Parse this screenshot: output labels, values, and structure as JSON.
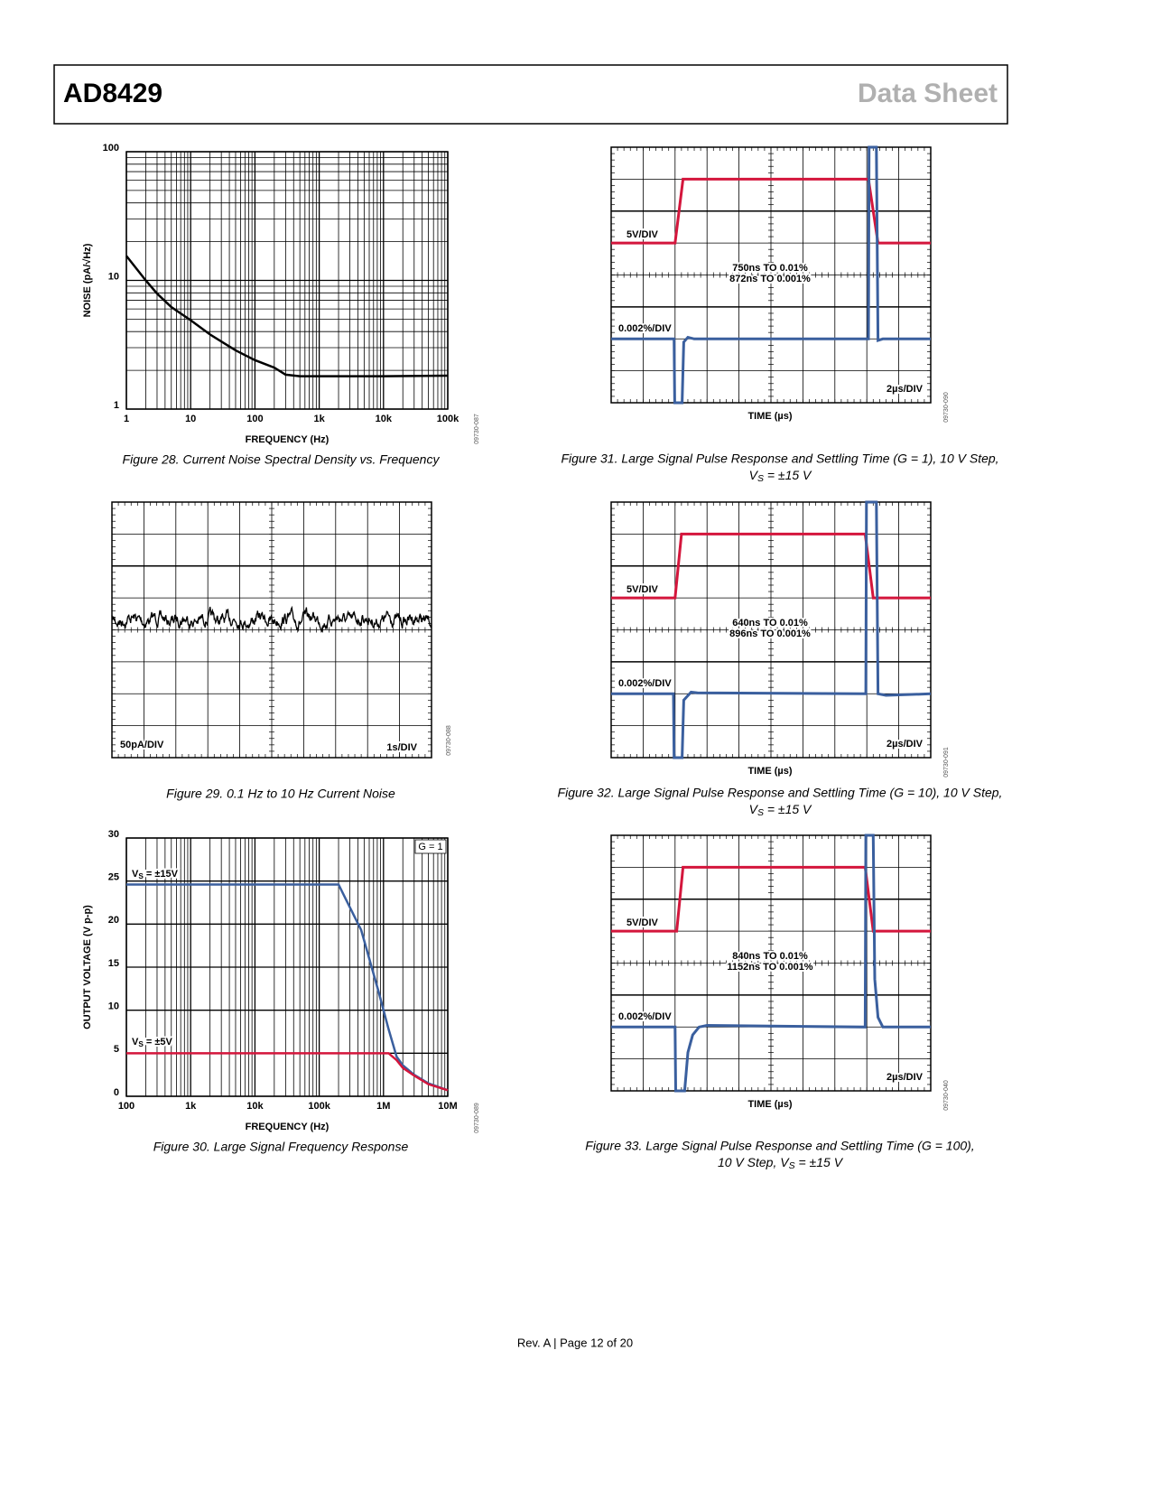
{
  "header": {
    "product": "AD8429",
    "doc_type": "Data Sheet"
  },
  "chart_data": [
    {
      "type": "line",
      "x_label": "FREQUENCY (Hz)",
      "y_label": "NOISE (pA/√Hz)",
      "xscale": "log",
      "yscale": "log",
      "grid": true,
      "xlim": [
        1,
        100000
      ],
      "ylim": [
        1,
        100
      ],
      "xticks": [
        1,
        10,
        100,
        {
          "value": 1000,
          "label": "1k"
        },
        {
          "value": 10000,
          "label": "10k"
        },
        {
          "value": 100000,
          "label": "100k"
        }
      ],
      "yticks": [
        1,
        10,
        100
      ],
      "x": [
        1,
        2,
        3,
        5,
        10,
        20,
        50,
        100,
        200,
        300,
        500,
        1000,
        10000,
        100000
      ],
      "series": [
        {
          "color": "#000000",
          "values": [
            15.5,
            10,
            7.9,
            6.2,
            4.9,
            3.8,
            2.86,
            2.4,
            2.1,
            1.85,
            1.8,
            1.8,
            1.8,
            1.82
          ]
        }
      ],
      "caption": "Figure 28. Current Noise Spectral Density vs. Frequency",
      "code": "09730-087"
    },
    {
      "type": "line",
      "x_label": "FREQUENCY (Hz)",
      "y_label": "OUTPUT VOLTAGE (V p-p)",
      "xscale": "log",
      "grid": true,
      "xlim": [
        100,
        10000000
      ],
      "ylim": [
        0,
        30
      ],
      "xticks": [
        100,
        {
          "value": 1000,
          "label": "1k"
        },
        {
          "value": 10000,
          "label": "10k"
        },
        {
          "value": 100000,
          "label": "100k"
        },
        {
          "value": 1000000,
          "label": "1M"
        },
        {
          "value": 10000000,
          "label": "10M"
        }
      ],
      "yticks": [
        0,
        5,
        10,
        15,
        20,
        25,
        30
      ],
      "x": [
        100,
        1000,
        10000,
        100000,
        200000,
        450000,
        850000,
        1200000,
        1600000,
        2000000,
        3000000,
        5000000,
        10000000
      ],
      "series": [
        {
          "color": "#3a5f9e",
          "values": [
            24.6,
            24.6,
            24.6,
            24.6,
            24.6,
            19.3,
            12,
            7.8,
            4.6,
            3.6,
            2.5,
            1.5,
            0.7
          ]
        },
        {
          "color": "#d4163c",
          "values": [
            5,
            5,
            5,
            5,
            5,
            5,
            5,
            5,
            4.2,
            3.3,
            2.4,
            1.4,
            0.7
          ]
        }
      ],
      "annotations": [
        {
          "symbol": "V",
          "sub": "S",
          "text": " = ±15V"
        },
        {
          "symbol": "V",
          "sub": "S",
          "text": " = ±5V"
        }
      ],
      "gain_label": "G = 1",
      "caption": "Figure 30. Large Signal Frequency Response",
      "code": "09730-089"
    }
  ],
  "noise_plot": {
    "y_label": "50pA/DIV",
    "x_label": "1s/DIV",
    "caption": "Figure 29. 0.1 Hz to 10 Hz Current Noise",
    "code": "09730-088"
  },
  "scopes": [
    {
      "top_label": "5V/DIV",
      "settle_1": "750ns TO 0.01%",
      "settle_2": "872ns TO 0.001%",
      "bottom_label": "0.002%/DIV",
      "time_div": "2µs/DIV",
      "x_label": "TIME (µs)",
      "code": "09730-090",
      "caption": {
        "line1": "Figure 31. Large Signal Pulse Response and Settling Time (G = 1), 10 V Step,",
        "line2": {
          "symbol": "V",
          "sub": "S",
          "rest": " = ±15 V"
        }
      }
    },
    {
      "top_label": "5V/DIV",
      "settle_1": "640ns TO 0.01%",
      "settle_2": "896ns TO 0.001%",
      "bottom_label": "0.002%/DIV",
      "time_div": "2µs/DIV",
      "x_label": "TIME (µs)",
      "code": "09730-091",
      "caption": {
        "line1": "Figure 32. Large Signal Pulse Response and Settling Time (G = 10), 10 V Step,",
        "line2": {
          "symbol": "V",
          "sub": "S",
          "rest": " = ±15 V"
        }
      }
    },
    {
      "top_label": "5V/DIV",
      "settle_1": "840ns TO 0.01%",
      "settle_2": "1152ns TO 0.001%",
      "bottom_label": "0.002%/DIV",
      "time_div": "2µs/DIV",
      "x_label": "TIME (µs)",
      "code": "09730-040",
      "caption": {
        "line1": "Figure 33. Large Signal Pulse Response and Settling Time (G = 100),",
        "line2": {
          "prefix": "10 V Step, ",
          "symbol": "V",
          "sub": "S",
          "rest": " = ±15 V"
        }
      }
    }
  ],
  "footer": "Rev. A | Page 12 of 20"
}
